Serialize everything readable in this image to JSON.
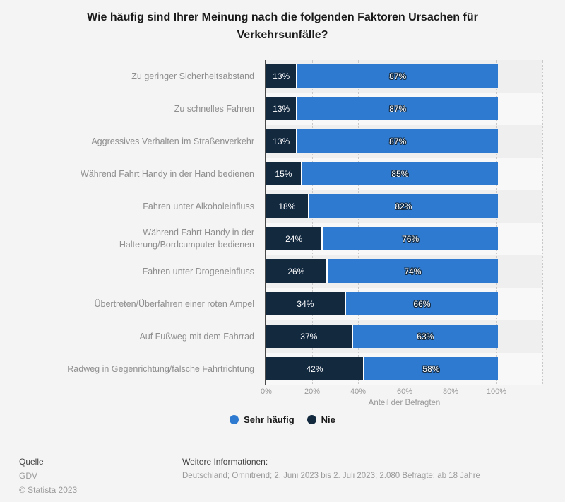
{
  "title": "Wie häufig sind Ihrer Meinung nach die folgenden Faktoren Ursachen für\nVerkehrsunfälle?",
  "colors": {
    "sehr_haeufig_blue": "#2e7ad1",
    "nie_navy": "#12293e",
    "band_odd": "#efefef",
    "band_even": "#f8f8f8",
    "page_background": "#f4f4f4",
    "gridline": "#c9c9c9",
    "axis_line": "#4a4a4a"
  },
  "chart_data": {
    "type": "bar",
    "orientation": "horizontal",
    "stacked": true,
    "title": "Wie häufig sind Ihrer Meinung nach die folgenden Faktoren Ursachen für Verkehrsunfälle?",
    "categories": [
      "Zu geringer Sicherheitsabstand",
      "Zu schnelles Fahren",
      "Aggressives Verhalten im Straßenverkehr",
      "Während Fahrt Handy in der Hand bedienen",
      "Fahren unter Alkoholeinfluss",
      "Während Fahrt Handy in der\nHalterung/Bordcumputer bedienen",
      "Fahren unter Drogeneinfluss",
      "Übertreten/Überfahren einer roten Ampel",
      "Auf Fußweg mit dem Fahrrad",
      "Radweg in Gegenrichtung/falsche Fahrtrichtung"
    ],
    "series": [
      {
        "name": "Nie",
        "color": "#12293e",
        "values": [
          13,
          13,
          13,
          15,
          18,
          24,
          26,
          34,
          37,
          42
        ]
      },
      {
        "name": "Sehr häufig",
        "color": "#2e7ad1",
        "values": [
          87,
          87,
          87,
          85,
          82,
          76,
          74,
          66,
          63,
          58
        ]
      }
    ],
    "value_label_format": "{v}%",
    "xlabel": "Anteil der Befragten",
    "x_ticks": [
      "0%",
      "20%",
      "40%",
      "60%",
      "80%",
      "100%"
    ],
    "x_tick_values": [
      0,
      20,
      40,
      60,
      80,
      100
    ],
    "xlim": [
      0,
      120
    ],
    "grid": "vertical-dotted",
    "legend_position": "bottom-center",
    "legend": [
      {
        "label": "Sehr häufig",
        "color": "#2e7ad1"
      },
      {
        "label": "Nie",
        "color": "#12293e"
      }
    ]
  },
  "footer": {
    "source_label": "Quelle",
    "source": "GDV",
    "copyright": "© Statista 2023",
    "info_label": "Weitere Informationen:",
    "info": "Deutschland; Omnitrend; 2. Juni 2023 bis 2. Juli 2023; 2.080 Befragte; ab 18 Jahre"
  }
}
